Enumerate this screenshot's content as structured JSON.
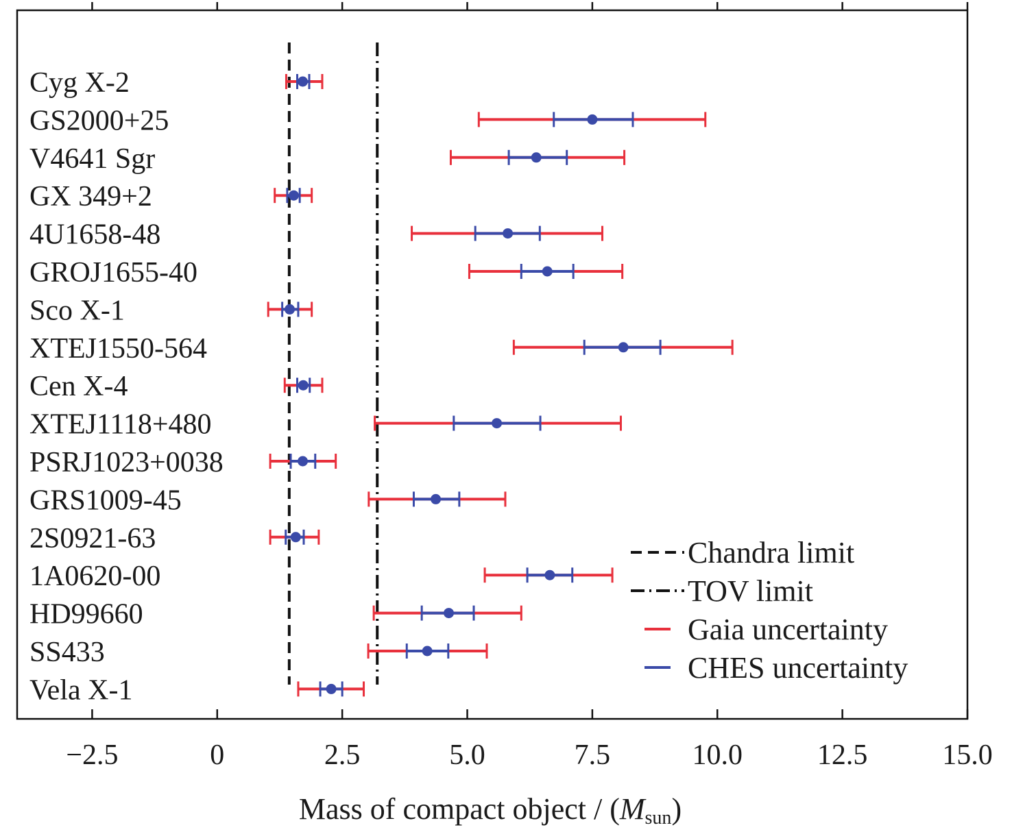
{
  "chart_data": {
    "type": "errorbar",
    "title": "",
    "xlabel": {
      "prefix": "Mass of compact object / (",
      "symbol": "M",
      "subscript": "sun",
      "suffix": ")"
    },
    "ylabel": "",
    "xlim": [
      -4,
      15
    ],
    "xticks": [
      -2.5,
      0,
      2.5,
      5.0,
      7.5,
      10.0,
      12.5,
      15.0
    ],
    "xtick_labels": [
      "−2.5",
      "0",
      "2.5",
      "5.0",
      "7.5",
      "10.0",
      "12.5",
      "15.0"
    ],
    "grid": false,
    "legend_position": "bottom-right",
    "colors": {
      "gaia": "#e8303c",
      "ches": "#3a4aa8",
      "point": "#3a4aa8",
      "lines": "#111111"
    },
    "reference_lines": [
      {
        "name": "Chandra limit",
        "x": 1.44,
        "style": "dashed"
      },
      {
        "name": "TOV limit",
        "x": 3.2,
        "style": "dash-dot"
      }
    ],
    "legend": [
      "Chandra limit",
      "TOV limit",
      "Gaia uncertainty",
      "CHES uncertainty"
    ],
    "objects": [
      {
        "name": "Cyg X-2",
        "mass": 1.71,
        "gaia": [
          1.38,
          2.1
        ],
        "ches": [
          1.6,
          1.84
        ]
      },
      {
        "name": "GS2000+25",
        "mass": 7.5,
        "gaia": [
          5.23,
          9.76
        ],
        "ches": [
          6.73,
          8.31
        ]
      },
      {
        "name": "V4641 Sgr",
        "mass": 6.38,
        "gaia": [
          4.67,
          8.14
        ],
        "ches": [
          5.83,
          6.99
        ]
      },
      {
        "name": "GX 349+2",
        "mass": 1.53,
        "gaia": [
          1.15,
          1.89
        ],
        "ches": [
          1.4,
          1.65
        ]
      },
      {
        "name": "4U1658-48",
        "mass": 5.81,
        "gaia": [
          3.89,
          7.7
        ],
        "ches": [
          5.16,
          6.45
        ]
      },
      {
        "name": "GROJ1655-40",
        "mass": 6.6,
        "gaia": [
          5.04,
          8.1
        ],
        "ches": [
          6.08,
          7.12
        ]
      },
      {
        "name": "Sco X-1",
        "mass": 1.45,
        "gaia": [
          1.02,
          1.89
        ],
        "ches": [
          1.3,
          1.62
        ]
      },
      {
        "name": "XTEJ1550-564",
        "mass": 8.12,
        "gaia": [
          5.93,
          10.3
        ],
        "ches": [
          7.34,
          8.86
        ]
      },
      {
        "name": "Cen X-4",
        "mass": 1.72,
        "gaia": [
          1.35,
          2.1
        ],
        "ches": [
          1.6,
          1.85
        ]
      },
      {
        "name": "XTEJ1118+480",
        "mass": 5.59,
        "gaia": [
          3.15,
          8.07
        ],
        "ches": [
          4.73,
          6.46
        ]
      },
      {
        "name": "PSRJ1023+0038",
        "mass": 1.71,
        "gaia": [
          1.06,
          2.37
        ],
        "ches": [
          1.47,
          1.96
        ]
      },
      {
        "name": "GRS1009-45",
        "mass": 4.37,
        "gaia": [
          3.03,
          5.76
        ],
        "ches": [
          3.93,
          4.84
        ]
      },
      {
        "name": "2S0921-63",
        "mass": 1.57,
        "gaia": [
          1.06,
          2.03
        ],
        "ches": [
          1.37,
          1.73
        ]
      },
      {
        "name": "1A0620-00",
        "mass": 6.65,
        "gaia": [
          5.35,
          7.9
        ],
        "ches": [
          6.2,
          7.1
        ]
      },
      {
        "name": "HD99660",
        "mass": 4.63,
        "gaia": [
          3.13,
          6.08
        ],
        "ches": [
          4.09,
          5.13
        ]
      },
      {
        "name": "SS433",
        "mass": 4.2,
        "gaia": [
          3.02,
          5.39
        ],
        "ches": [
          3.79,
          4.62
        ]
      },
      {
        "name": "Vela X-1",
        "mass": 2.28,
        "gaia": [
          1.62,
          2.93
        ],
        "ches": [
          2.06,
          2.5
        ]
      }
    ]
  }
}
